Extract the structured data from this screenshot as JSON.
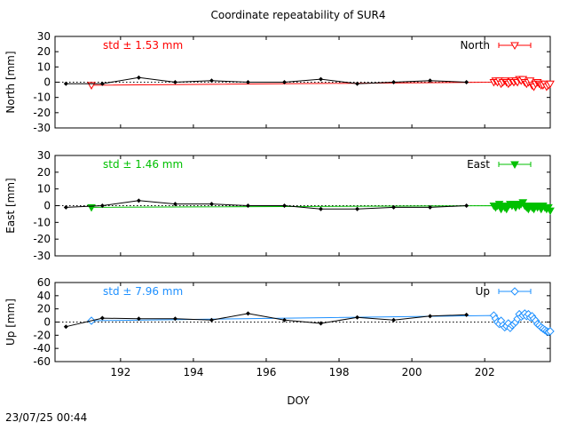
{
  "chart_data": {
    "type": "line",
    "title": "Coordinate repeatability of SUR4",
    "xlabel": "DOY",
    "xlim": [
      190.2,
      203.8
    ],
    "xticks": [
      192,
      194,
      196,
      198,
      200,
      202
    ],
    "timestamp": "23/07/25 00:44",
    "panels": [
      {
        "id": "north",
        "ylabel": "North [mm]",
        "ylim": [
          -30,
          30
        ],
        "yticks": [
          -30,
          -20,
          -10,
          0,
          10,
          20,
          30
        ],
        "std_label": "std ± 1.53 mm",
        "color": "#ff0000",
        "series": [
          {
            "name": "North",
            "marker": "triangle-down-open",
            "x": [
              191.2,
              202.25,
              202.3,
              202.35,
              202.4,
              202.45,
              202.5,
              202.55,
              202.6,
              202.65,
              202.7,
              202.75,
              202.8,
              202.85,
              202.9,
              202.95,
              203.0,
              203.05,
              203.1,
              203.15,
              203.2,
              203.25,
              203.3,
              203.35,
              203.4,
              203.45,
              203.5,
              203.55,
              203.6,
              203.65,
              203.7,
              203.75,
              203.8
            ],
            "y": [
              -2,
              0,
              1,
              0,
              1,
              -1,
              0,
              1,
              0,
              -1,
              0,
              1,
              0,
              1,
              0,
              2,
              1,
              2,
              0,
              -1,
              0,
              1,
              -2,
              -3,
              -1,
              0,
              -1,
              -2,
              -2,
              -1,
              -3,
              -2,
              -1
            ]
          },
          {
            "marker": "black-diamond",
            "x": [
              190.5,
              191.5,
              192.5,
              193.5,
              194.5,
              195.5,
              196.5,
              197.5,
              198.5,
              199.5,
              200.5,
              201.5
            ],
            "y": [
              -1,
              -1,
              3,
              0,
              1,
              0,
              0,
              2,
              -1,
              0,
              1,
              0
            ]
          }
        ]
      },
      {
        "id": "east",
        "ylabel": "East [mm]",
        "ylim": [
          -30,
          30
        ],
        "yticks": [
          -30,
          -20,
          -10,
          0,
          10,
          20,
          30
        ],
        "std_label": "std ± 1.46 mm",
        "color": "#00c000",
        "series": [
          {
            "name": "East",
            "marker": "triangle-down-filled",
            "x": [
              191.2,
              202.25,
              202.3,
              202.35,
              202.4,
              202.45,
              202.5,
              202.55,
              202.6,
              202.65,
              202.7,
              202.75,
              202.8,
              202.85,
              202.9,
              202.95,
              203.0,
              203.05,
              203.1,
              203.15,
              203.2,
              203.25,
              203.3,
              203.35,
              203.4,
              203.45,
              203.5,
              203.55,
              203.6,
              203.65,
              203.7,
              203.75,
              203.8
            ],
            "y": [
              -1,
              0,
              -1,
              0,
              1,
              -2,
              0,
              -1,
              -2,
              0,
              1,
              0,
              1,
              -1,
              1,
              0,
              1,
              2,
              0,
              -1,
              -2,
              0,
              -1,
              -2,
              0,
              -1,
              0,
              -2,
              0,
              -1,
              -2,
              -1,
              -3
            ]
          },
          {
            "marker": "black-diamond",
            "x": [
              190.5,
              191.5,
              192.5,
              193.5,
              194.5,
              195.5,
              196.5,
              197.5,
              198.5,
              199.5,
              200.5,
              201.5
            ],
            "y": [
              -1,
              0,
              3,
              1,
              1,
              0,
              0,
              -2,
              -2,
              -1,
              -1,
              0
            ]
          }
        ]
      },
      {
        "id": "up",
        "ylabel": "Up [mm]",
        "ylim": [
          -60,
          60
        ],
        "yticks": [
          -60,
          -40,
          -20,
          0,
          20,
          40,
          60
        ],
        "std_label": "std ± 7.96 mm",
        "color": "#1e90ff",
        "series": [
          {
            "name": "Up",
            "marker": "diamond-open",
            "x": [
              191.2,
              202.25,
              202.3,
              202.35,
              202.4,
              202.45,
              202.5,
              202.55,
              202.6,
              202.65,
              202.7,
              202.75,
              202.8,
              202.85,
              202.9,
              202.95,
              203.0,
              203.05,
              203.1,
              203.15,
              203.2,
              203.25,
              203.3,
              203.35,
              203.4,
              203.45,
              203.5,
              203.55,
              203.6,
              203.65,
              203.7,
              203.75,
              203.8
            ],
            "y": [
              2,
              10,
              5,
              0,
              -3,
              2,
              -5,
              -8,
              -6,
              -2,
              -9,
              -5,
              -3,
              0,
              5,
              12,
              8,
              10,
              13,
              9,
              12,
              7,
              9,
              5,
              2,
              -3,
              -5,
              -8,
              -10,
              -12,
              -14,
              -15,
              -14
            ]
          },
          {
            "marker": "black-diamond",
            "x": [
              190.5,
              191.5,
              192.5,
              193.5,
              194.5,
              195.5,
              196.5,
              197.5,
              198.5,
              199.5,
              200.5,
              201.5
            ],
            "y": [
              -7,
              6,
              5,
              5,
              3,
              13,
              3,
              -2,
              7,
              3,
              9,
              11
            ]
          }
        ]
      }
    ]
  }
}
